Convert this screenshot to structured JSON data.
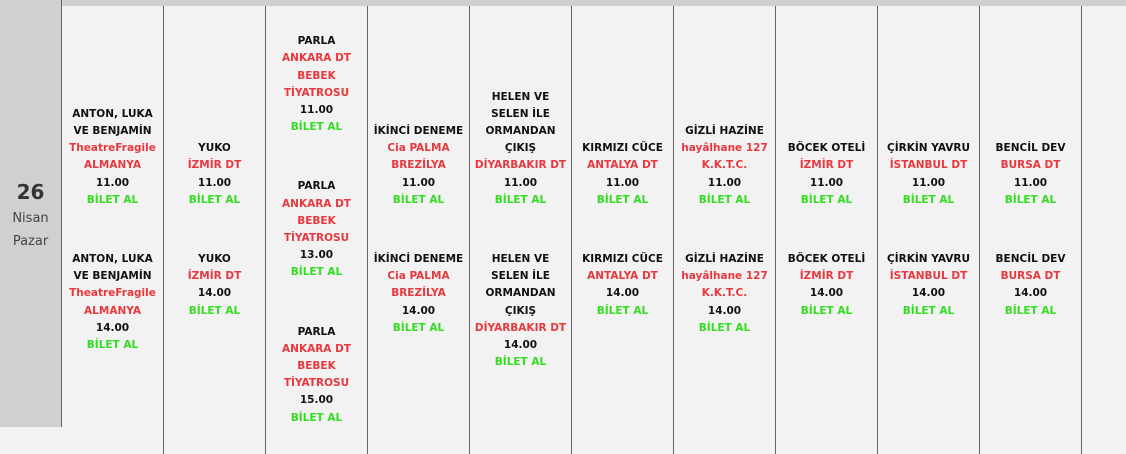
{
  "date": {
    "day": "26",
    "month": "Nisan",
    "weekday": "Pazar"
  },
  "colors": {
    "company": "#e8383d",
    "buy": "#33dd22"
  },
  "columns": [
    {
      "sessions": [
        {
          "title": "ANTON, LUKA VE BENJAMİN",
          "company": [
            "TheatreFragile",
            "ALMANYA"
          ],
          "time": "11.00",
          "buy": "BİLET AL"
        },
        {
          "title": "ANTON, LUKA VE BENJAMİN",
          "company": [
            "TheatreFragile",
            "ALMANYA"
          ],
          "time": "14.00",
          "buy": "BİLET AL"
        }
      ]
    },
    {
      "sessions": [
        {
          "title": "YUKO",
          "company": [
            "İZMİR DT"
          ],
          "time": "11.00",
          "buy": "BİLET AL"
        },
        {
          "title": "YUKO",
          "company": [
            "İZMİR DT"
          ],
          "time": "14.00",
          "buy": "BİLET AL"
        }
      ]
    },
    {
      "sessions": [
        {
          "title": "PARLA",
          "company": [
            "ANKARA DT",
            "BEBEK",
            "TİYATROSU"
          ],
          "time": "11.00",
          "buy": "BİLET AL"
        },
        {
          "title": "PARLA",
          "company": [
            "ANKARA DT",
            "BEBEK",
            "TİYATROSU"
          ],
          "time": "13.00",
          "buy": "BİLET AL"
        },
        {
          "title": "PARLA",
          "company": [
            "ANKARA DT",
            "BEBEK",
            "TİYATROSU"
          ],
          "time": "15.00",
          "buy": "BİLET AL"
        }
      ]
    },
    {
      "sessions": [
        {
          "title": "İKİNCİ DENEME",
          "company": [
            "Cia PALMA",
            "BREZİLYA"
          ],
          "time": "11.00",
          "buy": "BİLET AL"
        },
        {
          "title": "İKİNCİ DENEME",
          "company": [
            "Cia PALMA",
            "BREZİLYA"
          ],
          "time": "14.00",
          "buy": "BİLET AL"
        }
      ]
    },
    {
      "sessions": [
        {
          "title": "HELEN VE SELEN İLE ORMANDAN ÇIKIŞ",
          "company": [
            "DİYARBAKIR DT"
          ],
          "time": "11.00",
          "buy": "BİLET AL"
        },
        {
          "title": "HELEN VE SELEN İLE ORMANDAN ÇIKIŞ",
          "company": [
            "DİYARBAKIR DT"
          ],
          "time": "14.00",
          "buy": "BİLET AL"
        }
      ]
    },
    {
      "sessions": [
        {
          "title": "KIRMIZI CÜCE",
          "company": [
            "ANTALYA DT"
          ],
          "time": "11.00",
          "buy": "BİLET AL"
        },
        {
          "title": "KIRMIZI CÜCE",
          "company": [
            "ANTALYA DT"
          ],
          "time": "14.00",
          "buy": "BİLET AL"
        }
      ]
    },
    {
      "sessions": [
        {
          "title": "GİZLİ HAZİNE",
          "company": [
            "hayâlhane 127",
            "K.K.T.C."
          ],
          "time": "11.00",
          "buy": "BİLET AL"
        },
        {
          "title": "GİZLİ HAZİNE",
          "company": [
            "hayâlhane 127",
            "K.K.T.C."
          ],
          "time": "14.00",
          "buy": "BİLET AL"
        }
      ]
    },
    {
      "sessions": [
        {
          "title": "BÖCEK OTELİ",
          "company": [
            "İZMİR DT"
          ],
          "time": "11.00",
          "buy": "BİLET AL"
        },
        {
          "title": "BÖCEK OTELİ",
          "company": [
            "İZMİR DT"
          ],
          "time": "14.00",
          "buy": "BİLET AL"
        }
      ]
    },
    {
      "sessions": [
        {
          "title": "ÇİRKİN YAVRU",
          "company": [
            "İSTANBUL DT"
          ],
          "time": "11.00",
          "buy": "BİLET AL"
        },
        {
          "title": "ÇİRKİN YAVRU",
          "company": [
            "İSTANBUL DT"
          ],
          "time": "14.00",
          "buy": "BİLET AL"
        }
      ]
    },
    {
      "sessions": [
        {
          "title": "BENCİL DEV",
          "company": [
            "BURSA DT"
          ],
          "time": "11.00",
          "buy": "BİLET AL"
        },
        {
          "title": "BENCİL DEV",
          "company": [
            "BURSA DT"
          ],
          "time": "14.00",
          "buy": "BİLET AL"
        }
      ]
    }
  ]
}
